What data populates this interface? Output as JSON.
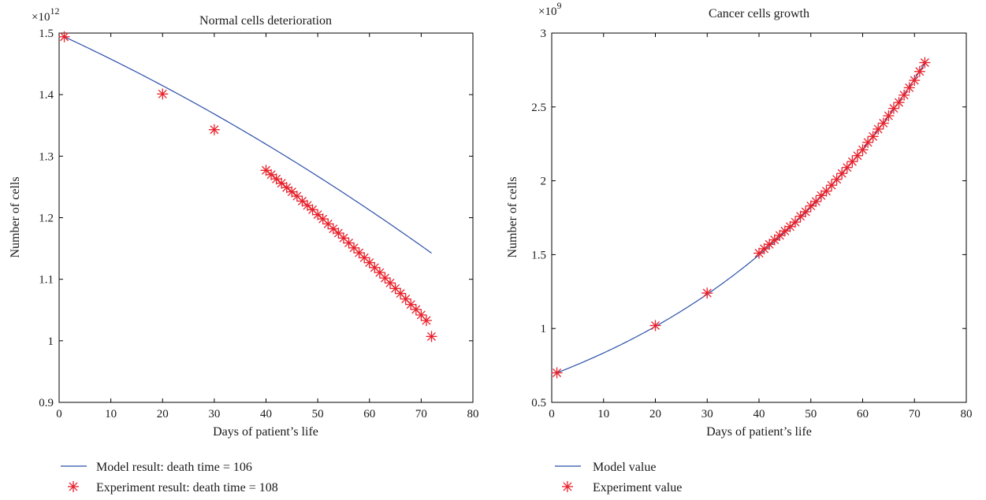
{
  "chart_data": [
    {
      "type": "line",
      "title": "Normal cells deterioration",
      "xlabel": "Days of patient’s life",
      "ylabel": "Number of cells",
      "y_multiplier_base": "×10",
      "y_multiplier_exp": "12",
      "xlim": [
        0,
        80
      ],
      "ylim": [
        0.9,
        1.5
      ],
      "xticks": [
        0,
        10,
        20,
        30,
        40,
        50,
        60,
        70,
        80
      ],
      "yticks": [
        0.9,
        1,
        1.1,
        1.2,
        1.3,
        1.4,
        1.5
      ],
      "ytick_labels": [
        "0.9",
        "1",
        "1.1",
        "1.2",
        "1.3",
        "1.4",
        "1.5"
      ],
      "grid": false,
      "legend_position": "below",
      "model": {
        "x0": 1,
        "x1": 72,
        "y0": 1.494,
        "k": 0.0039,
        "curve": 1.48e-05
      },
      "series": [
        {
          "name": "Model result: death time = 106",
          "kind": "line",
          "color": "#2b4fa8"
        },
        {
          "name": "Experiment result: death time = 108",
          "kind": "marker",
          "color": "#e8202a",
          "x": [
            1,
            20,
            30,
            40,
            41,
            42,
            43,
            44,
            45,
            46,
            47,
            48,
            49,
            50,
            51,
            52,
            53,
            54,
            55,
            56,
            57,
            58,
            59,
            60,
            61,
            62,
            63,
            64,
            65,
            66,
            67,
            68,
            69,
            70,
            71,
            72
          ],
          "y": [
            1.494,
            1.401,
            1.343,
            1.277,
            1.27,
            1.263,
            1.256,
            1.249,
            1.242,
            1.235,
            1.227,
            1.22,
            1.213,
            1.205,
            1.198,
            1.19,
            1.182,
            1.175,
            1.167,
            1.159,
            1.151,
            1.143,
            1.135,
            1.127,
            1.119,
            1.111,
            1.102,
            1.094,
            1.085,
            1.077,
            1.068,
            1.059,
            1.051,
            1.042,
            1.033,
            1.007
          ]
        }
      ]
    },
    {
      "type": "line",
      "title": "Cancer cells growth",
      "xlabel": "Days of patient’s life",
      "ylabel": "Number of cells",
      "y_multiplier_base": "×10",
      "y_multiplier_exp": "9",
      "xlim": [
        0,
        80
      ],
      "ylim": [
        0.5,
        3
      ],
      "xticks": [
        0,
        10,
        20,
        30,
        40,
        50,
        60,
        70,
        80
      ],
      "yticks": [
        0.5,
        1,
        1.5,
        2,
        2.5,
        3
      ],
      "ytick_labels": [
        "0.5",
        "1",
        "1.5",
        "2",
        "2.5",
        "3"
      ],
      "grid": false,
      "legend_position": "below",
      "model": {
        "x0": 1,
        "x1": 72,
        "y0": 0.7,
        "growth": 0.0195
      },
      "series": [
        {
          "name": "Model value",
          "kind": "line",
          "color": "#2b4fa8"
        },
        {
          "name": "Experiment value",
          "kind": "marker",
          "color": "#e8202a",
          "x": [
            1,
            20,
            30,
            40,
            41,
            42,
            43,
            44,
            45,
            46,
            47,
            48,
            49,
            50,
            51,
            52,
            53,
            54,
            55,
            56,
            57,
            58,
            59,
            60,
            61,
            62,
            63,
            64,
            65,
            66,
            67,
            68,
            69,
            70,
            71,
            72
          ],
          "y": [
            0.7,
            1.02,
            1.24,
            1.51,
            1.54,
            1.57,
            1.6,
            1.63,
            1.66,
            1.69,
            1.72,
            1.76,
            1.79,
            1.83,
            1.86,
            1.9,
            1.93,
            1.97,
            2.01,
            2.05,
            2.09,
            2.13,
            2.17,
            2.21,
            2.26,
            2.3,
            2.35,
            2.39,
            2.44,
            2.49,
            2.53,
            2.58,
            2.63,
            2.68,
            2.74,
            2.8
          ]
        }
      ]
    }
  ]
}
